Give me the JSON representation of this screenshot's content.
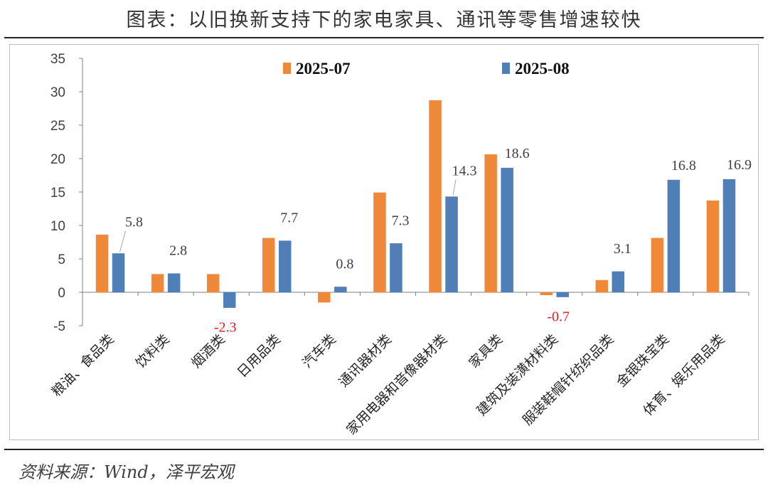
{
  "title": "图表：以旧换新支持下的家电家具、通讯等零售增速较快",
  "source": "资料来源：Wind，泽平宏观",
  "colors": {
    "series_2025_07": "#f0883a",
    "series_2025_08": "#4f7fb6",
    "label": "#404040",
    "negative_label": "#e02020",
    "axis": "#808080"
  },
  "chart_data": {
    "type": "bar",
    "categories": [
      "粮油、食品类",
      "饮料类",
      "烟酒类",
      "日用品类",
      "汽车类",
      "通讯器材类",
      "家用电器和音像器材类",
      "家具类",
      "建筑及装潢材料类",
      "服装鞋帽针纺织品类",
      "金银珠宝类",
      "体育、娱乐用品类"
    ],
    "series": [
      {
        "name": "2025-07",
        "values": [
          8.6,
          2.7,
          2.7,
          8.1,
          -1.5,
          14.9,
          28.7,
          20.6,
          -0.4,
          1.8,
          8.1,
          13.7
        ]
      },
      {
        "name": "2025-08",
        "values": [
          5.8,
          2.8,
          -2.3,
          7.7,
          0.8,
          7.3,
          14.3,
          18.6,
          -0.7,
          3.1,
          16.8,
          16.9
        ]
      }
    ],
    "data_labels": [
      "5.8",
      "2.8",
      "-2.3",
      "7.7",
      "0.8",
      "7.3",
      "14.3",
      "18.6",
      "-0.7",
      "3.1",
      "16.8",
      "16.9"
    ],
    "ylim": [
      -5,
      35
    ],
    "yticks": [
      "-5",
      "0",
      "5",
      "10",
      "15",
      "20",
      "25",
      "30",
      "35"
    ],
    "xlabel": "",
    "ylabel": "",
    "legend_position": "top",
    "grid": false
  }
}
